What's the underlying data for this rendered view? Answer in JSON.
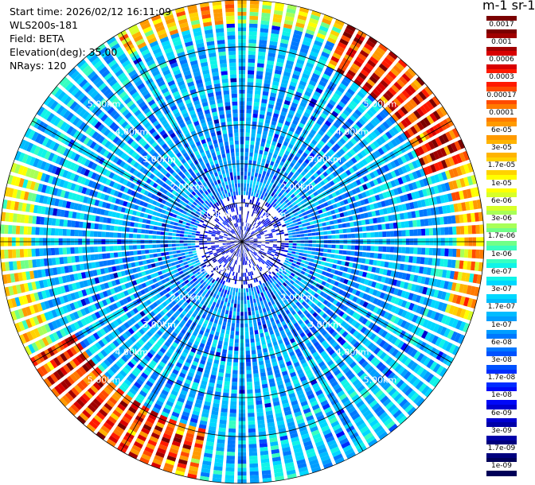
{
  "info": {
    "start_time": "Start time: 2026/02/12 16:11:09",
    "device": "WLS200s-181",
    "field": "Field: BETA",
    "elevation": "Elevation(deg): 35.00",
    "nrays": "NRays: 120"
  },
  "colorbar": {
    "title": "m-1 sr-1",
    "labels": [
      "0.0017",
      "0.001",
      "0.0006",
      "0.0003",
      "0.00017",
      "0.0001",
      "6e-05",
      "3e-05",
      "1.7e-05",
      "1e-05",
      "6e-06",
      "3e-06",
      "1.7e-06",
      "1e-06",
      "6e-07",
      "3e-07",
      "1.7e-07",
      "1e-07",
      "6e-08",
      "3e-08",
      "1.7e-08",
      "1e-08",
      "6e-09",
      "3e-09",
      "1.7e-09",
      "1e-09"
    ],
    "colors": [
      "#7a0000",
      "#a00000",
      "#d80000",
      "#ff1a00",
      "#ff4a00",
      "#ff7a00",
      "#ff9a00",
      "#ffb400",
      "#ffd200",
      "#ffff00",
      "#d8ff28",
      "#a8ff58",
      "#70ff88",
      "#38ffc0",
      "#10f4e8",
      "#00d8ff",
      "#00bcff",
      "#009eff",
      "#0078ff",
      "#0052ff",
      "#002cff",
      "#0008f8",
      "#0000d0",
      "#0000a8",
      "#00007e",
      "#000058"
    ]
  },
  "chart_data": {
    "type": "heatmap",
    "projection": "polar-ppi",
    "nrays": 120,
    "elevation_deg": 35.0,
    "range_unit": "km",
    "range_rings_km": [
      1,
      2,
      3,
      4,
      5
    ],
    "ring_labels": [
      "1.00km",
      "2.00km",
      "3.00km",
      "4.00km",
      "5.00km"
    ],
    "max_range_km": 6.2,
    "color_scale": "log",
    "value_range": [
      1e-09,
      0.0017
    ],
    "background_level": 1e-07,
    "enhanced_regions": [
      {
        "azimuth_deg": [
          25,
          70
        ],
        "range_km": [
          5.0,
          6.2
        ],
        "level": 0.0003
      },
      {
        "azimuth_deg": [
          70,
          110
        ],
        "range_km": [
          5.5,
          6.2
        ],
        "level": 3e-05
      },
      {
        "azimuth_deg": [
          0,
          25
        ],
        "range_km": [
          5.6,
          6.2
        ],
        "level": 1e-05
      },
      {
        "azimuth_deg": [
          330,
          360
        ],
        "range_km": [
          5.6,
          6.2
        ],
        "level": 3e-05
      },
      {
        "azimuth_deg": [
          190,
          240
        ],
        "range_km": [
          4.9,
          6.2
        ],
        "level": 0.0003
      },
      {
        "azimuth_deg": [
          240,
          290
        ],
        "range_km": [
          5.4,
          6.2
        ],
        "level": 1e-05
      }
    ],
    "inner_region": {
      "range_km": [
        0,
        1.2
      ],
      "level": 1e-08
    }
  }
}
